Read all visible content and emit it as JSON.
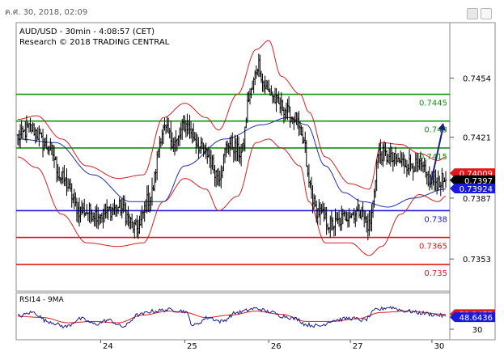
{
  "timestamp": "ค.ศ. 30, 2018, 02:09",
  "chart_data": {
    "type": "line",
    "title": "AUD/USD - 30min - 4:08:57 (CET)",
    "subtitle": "Research © 2018 TRADING CENTRAL",
    "ylim": [
      0.7335,
      0.7485
    ],
    "y_ticks": [
      0.7353,
      0.7387,
      0.7421,
      0.7454
    ],
    "y_tick_labels": [
      "0.7353",
      "0.7387",
      "0.7421",
      "0.7454"
    ],
    "x_tick_labels": [
      "24",
      "25",
      "26",
      "27",
      "30"
    ],
    "x_tick_bars": [
      66,
      133,
      200,
      265,
      330
    ],
    "grid": false,
    "n_bars": 342,
    "levels": [
      {
        "value": 0.7445,
        "label": "0.7445",
        "color": "#109010"
      },
      {
        "value": 0.743,
        "label": "0.743",
        "color": "#109010"
      },
      {
        "value": 0.7415,
        "label": "0.7415",
        "color": "#109010"
      },
      {
        "value": 0.738,
        "label": "0.738",
        "color": "#1a1adf"
      },
      {
        "value": 0.7365,
        "label": "0.7365",
        "color": "#e01818"
      },
      {
        "value": 0.735,
        "label": "0.735",
        "color": "#e01818"
      }
    ],
    "price_tags": [
      {
        "value": 0.74009,
        "label": "0.74009",
        "bg": "#e01a1a",
        "fg": "#ffffff"
      },
      {
        "value": 0.7397,
        "label": "0.7397",
        "bg": "#000000",
        "fg": "#ffffff"
      },
      {
        "value": 0.73924,
        "label": "0.73924",
        "bg": "#1a1adf",
        "fg": "#ffffff"
      }
    ],
    "price_waypoints": [
      [
        0,
        0.7421
      ],
      [
        10,
        0.7426
      ],
      [
        25,
        0.7415
      ],
      [
        35,
        0.7398
      ],
      [
        50,
        0.738
      ],
      [
        66,
        0.7378
      ],
      [
        80,
        0.7382
      ],
      [
        95,
        0.737
      ],
      [
        105,
        0.7387
      ],
      [
        116,
        0.7425
      ],
      [
        126,
        0.7418
      ],
      [
        133,
        0.7428
      ],
      [
        150,
        0.7412
      ],
      [
        160,
        0.74
      ],
      [
        168,
        0.7418
      ],
      [
        178,
        0.7412
      ],
      [
        185,
        0.7445
      ],
      [
        192,
        0.7462
      ],
      [
        196,
        0.745
      ],
      [
        200,
        0.7446
      ],
      [
        210,
        0.7438
      ],
      [
        220,
        0.7432
      ],
      [
        228,
        0.7418
      ],
      [
        232,
        0.7395
      ],
      [
        238,
        0.738
      ],
      [
        250,
        0.7372
      ],
      [
        265,
        0.7378
      ],
      [
        272,
        0.738
      ],
      [
        280,
        0.7372
      ],
      [
        288,
        0.7412
      ],
      [
        300,
        0.7408
      ],
      [
        313,
        0.7406
      ],
      [
        320,
        0.7404
      ],
      [
        330,
        0.7396
      ],
      [
        341,
        0.7397
      ]
    ],
    "bollinger_upper_waypoints": [
      [
        0,
        0.7431
      ],
      [
        15,
        0.7433
      ],
      [
        35,
        0.742
      ],
      [
        55,
        0.7405
      ],
      [
        80,
        0.7398
      ],
      [
        100,
        0.74
      ],
      [
        116,
        0.7432
      ],
      [
        133,
        0.744
      ],
      [
        150,
        0.7432
      ],
      [
        160,
        0.7425
      ],
      [
        175,
        0.7445
      ],
      [
        190,
        0.747
      ],
      [
        200,
        0.7475
      ],
      [
        210,
        0.7455
      ],
      [
        225,
        0.7445
      ],
      [
        232,
        0.7435
      ],
      [
        245,
        0.741
      ],
      [
        265,
        0.7395
      ],
      [
        280,
        0.7392
      ],
      [
        290,
        0.7418
      ],
      [
        305,
        0.7417
      ],
      [
        320,
        0.7412
      ],
      [
        335,
        0.7408
      ],
      [
        341,
        0.741
      ]
    ],
    "bollinger_lower_waypoints": [
      [
        0,
        0.741
      ],
      [
        15,
        0.7404
      ],
      [
        35,
        0.7378
      ],
      [
        55,
        0.7362
      ],
      [
        80,
        0.736
      ],
      [
        100,
        0.7362
      ],
      [
        116,
        0.7385
      ],
      [
        133,
        0.7398
      ],
      [
        150,
        0.7392
      ],
      [
        160,
        0.738
      ],
      [
        175,
        0.7388
      ],
      [
        190,
        0.7418
      ],
      [
        200,
        0.742
      ],
      [
        210,
        0.7415
      ],
      [
        225,
        0.7405
      ],
      [
        232,
        0.7385
      ],
      [
        245,
        0.7362
      ],
      [
        265,
        0.7362
      ],
      [
        280,
        0.7355
      ],
      [
        290,
        0.736
      ],
      [
        305,
        0.7378
      ],
      [
        320,
        0.7389
      ],
      [
        335,
        0.7385
      ],
      [
        341,
        0.7388
      ]
    ],
    "moving_average_waypoints": [
      [
        0,
        0.742
      ],
      [
        30,
        0.7418
      ],
      [
        60,
        0.74
      ],
      [
        90,
        0.7385
      ],
      [
        116,
        0.7385
      ],
      [
        133,
        0.7405
      ],
      [
        165,
        0.742
      ],
      [
        195,
        0.7428
      ],
      [
        215,
        0.7432
      ],
      [
        230,
        0.7428
      ],
      [
        245,
        0.7405
      ],
      [
        260,
        0.739
      ],
      [
        275,
        0.7385
      ],
      [
        295,
        0.7382
      ],
      [
        315,
        0.7387
      ],
      [
        341,
        0.7392
      ]
    ],
    "forecast_arrow": {
      "from": [
        329,
        0.7395
      ],
      "to": [
        339,
        0.7429
      ],
      "color": "#1a2080"
    },
    "rsi": {
      "label": "RSI14 - 9MA",
      "ylim": [
        15,
        85
      ],
      "y_ticks": [
        30
      ],
      "y_tick_labels": [
        "30"
      ],
      "tags": [
        {
          "value": 53.2477,
          "label": "53.2477",
          "bg": "#e01a1a",
          "fg": "#ffffff"
        },
        {
          "value": 48.6436,
          "label": "48.6436",
          "bg": "#1a1adf",
          "fg": "#ffffff"
        }
      ],
      "waypoints": [
        [
          0,
          50
        ],
        [
          12,
          56
        ],
        [
          24,
          42
        ],
        [
          38,
          34
        ],
        [
          50,
          46
        ],
        [
          62,
          38
        ],
        [
          72,
          44
        ],
        [
          84,
          34
        ],
        [
          96,
          52
        ],
        [
          108,
          58
        ],
        [
          120,
          60
        ],
        [
          133,
          58
        ],
        [
          140,
          36
        ],
        [
          152,
          48
        ],
        [
          162,
          42
        ],
        [
          175,
          56
        ],
        [
          190,
          62
        ],
        [
          200,
          57
        ],
        [
          212,
          50
        ],
        [
          222,
          46
        ],
        [
          230,
          37
        ],
        [
          240,
          35
        ],
        [
          252,
          44
        ],
        [
          265,
          47
        ],
        [
          276,
          44
        ],
        [
          286,
          60
        ],
        [
          296,
          64
        ],
        [
          310,
          58
        ],
        [
          322,
          55
        ],
        [
          334,
          52
        ],
        [
          341,
          50
        ]
      ],
      "ma_waypoints": [
        [
          0,
          50
        ],
        [
          20,
          48
        ],
        [
          40,
          40
        ],
        [
          60,
          42
        ],
        [
          80,
          40
        ],
        [
          100,
          52
        ],
        [
          120,
          58
        ],
        [
          133,
          56
        ],
        [
          150,
          48
        ],
        [
          170,
          52
        ],
        [
          190,
          58
        ],
        [
          210,
          53
        ],
        [
          230,
          42
        ],
        [
          250,
          42
        ],
        [
          270,
          46
        ],
        [
          290,
          56
        ],
        [
          310,
          58
        ],
        [
          341,
          53
        ]
      ]
    }
  }
}
